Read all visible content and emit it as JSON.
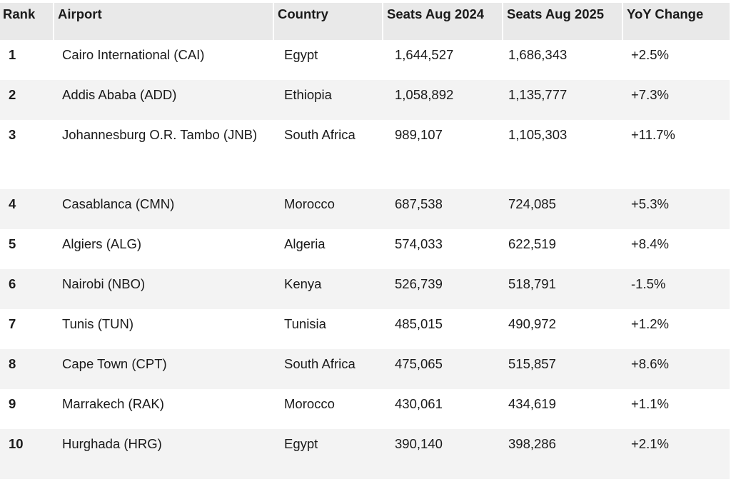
{
  "table": {
    "headers": {
      "rank": "Rank",
      "airport": "Airport",
      "country": "Country",
      "seats_2024": "Seats Aug 2024",
      "seats_2025": "Seats Aug 2025",
      "yoy": "YoY Change"
    },
    "rows": [
      {
        "rank": "1",
        "airport": "Cairo International (CAI)",
        "country": "Egypt",
        "seats_2024": "1,644,527",
        "seats_2025": "1,686,343",
        "yoy": "+2.5%"
      },
      {
        "rank": "2",
        "airport": "Addis Ababa (ADD)",
        "country": "Ethiopia",
        "seats_2024": "1,058,892",
        "seats_2025": "1,135,777",
        "yoy": "+7.3%"
      },
      {
        "rank": "3",
        "airport": "Johannesburg O.R. Tambo (JNB)",
        "country": "South Africa",
        "seats_2024": "989,107",
        "seats_2025": "1,105,303",
        "yoy": "+11.7%"
      },
      {
        "rank": "4",
        "airport": "Casablanca (CMN)",
        "country": "Morocco",
        "seats_2024": "687,538",
        "seats_2025": "724,085",
        "yoy": "+5.3%"
      },
      {
        "rank": "5",
        "airport": "Algiers (ALG)",
        "country": "Algeria",
        "seats_2024": "574,033",
        "seats_2025": "622,519",
        "yoy": "+8.4%"
      },
      {
        "rank": "6",
        "airport": "Nairobi (NBO)",
        "country": "Kenya",
        "seats_2024": "526,739",
        "seats_2025": "518,791",
        "yoy": "-1.5%"
      },
      {
        "rank": "7",
        "airport": "Tunis (TUN)",
        "country": "Tunisia",
        "seats_2024": "485,015",
        "seats_2025": "490,972",
        "yoy": "+1.2%"
      },
      {
        "rank": "8",
        "airport": "Cape Town (CPT)",
        "country": "South Africa",
        "seats_2024": "475,065",
        "seats_2025": "515,857",
        "yoy": "+8.6%"
      },
      {
        "rank": "9",
        "airport": "Marrakech (RAK)",
        "country": "Morocco",
        "seats_2024": "430,061",
        "seats_2025": "434,619",
        "yoy": "+1.1%"
      },
      {
        "rank": "10",
        "airport": "Hurghada (HRG)",
        "country": "Egypt",
        "seats_2024": "390,140",
        "seats_2025": "398,286",
        "yoy": "+2.1%"
      }
    ]
  }
}
